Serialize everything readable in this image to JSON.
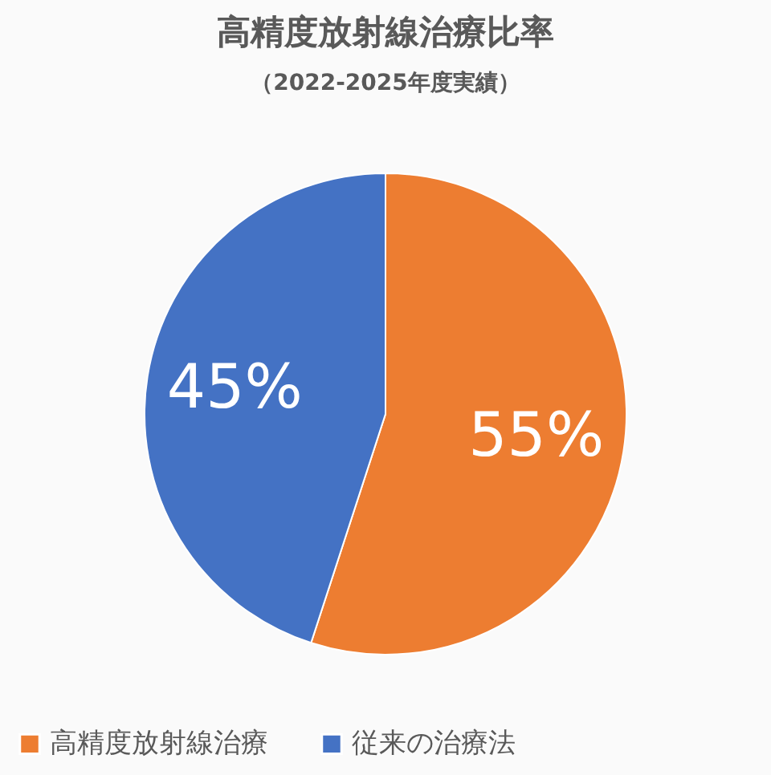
{
  "chart_data": {
    "type": "pie",
    "title": "高精度放射線治療比率",
    "subtitle": "（2022-2025年度実績）",
    "categories": [
      "高精度放射線治療",
      "従来の治療法"
    ],
    "values": [
      55,
      45
    ],
    "colors": [
      "#ed7d31",
      "#4472c4"
    ],
    "value_labels": [
      "55%",
      "45%"
    ],
    "legend": "bottom"
  }
}
